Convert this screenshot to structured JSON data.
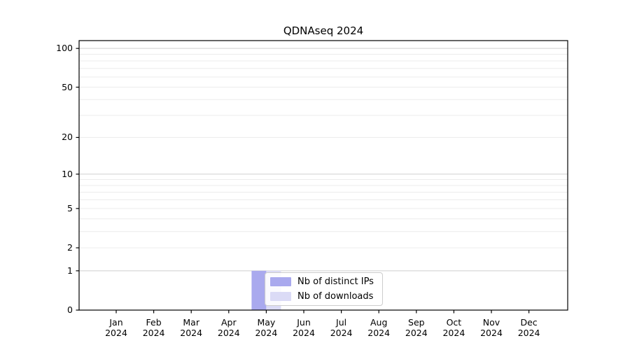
{
  "figure": {
    "title": "QDNAseq 2024"
  },
  "legend": {
    "items": [
      {
        "label": "Nb of distinct IPs",
        "color": "#a9a9ee"
      },
      {
        "label": "Nb of downloads",
        "color": "#dbdbf6"
      }
    ]
  },
  "chart_data": {
    "type": "bar",
    "title": "QDNAseq 2024",
    "categories": [
      "Jan 2024",
      "Feb 2024",
      "Mar 2024",
      "Apr 2024",
      "May 2024",
      "Jun 2024",
      "Jul 2024",
      "Aug 2024",
      "Sep 2024",
      "Oct 2024",
      "Nov 2024",
      "Dec 2024"
    ],
    "series": [
      {
        "name": "Nb of distinct IPs",
        "color": "#a9a9ee",
        "values": [
          0,
          0,
          0,
          0,
          1,
          0,
          0,
          0,
          0,
          0,
          0,
          0
        ]
      },
      {
        "name": "Nb of downloads",
        "color": "#dbdbf6",
        "values": [
          0,
          0,
          0,
          0,
          1,
          0,
          0,
          0,
          0,
          0,
          0,
          0
        ]
      }
    ],
    "xlabel": "",
    "ylabel": "",
    "yscale": "log1p",
    "yticks": [
      0,
      1,
      2,
      5,
      10,
      20,
      50,
      100
    ],
    "ylim": [
      0,
      115
    ],
    "grid": "horizontal",
    "grid_minor_values": [
      2,
      3,
      4,
      5,
      6,
      7,
      8,
      9,
      20,
      30,
      40,
      50,
      60,
      70,
      80,
      90
    ],
    "grid_major_values": [
      1,
      10,
      100
    ],
    "legend_position": "lower center, over May bars"
  }
}
